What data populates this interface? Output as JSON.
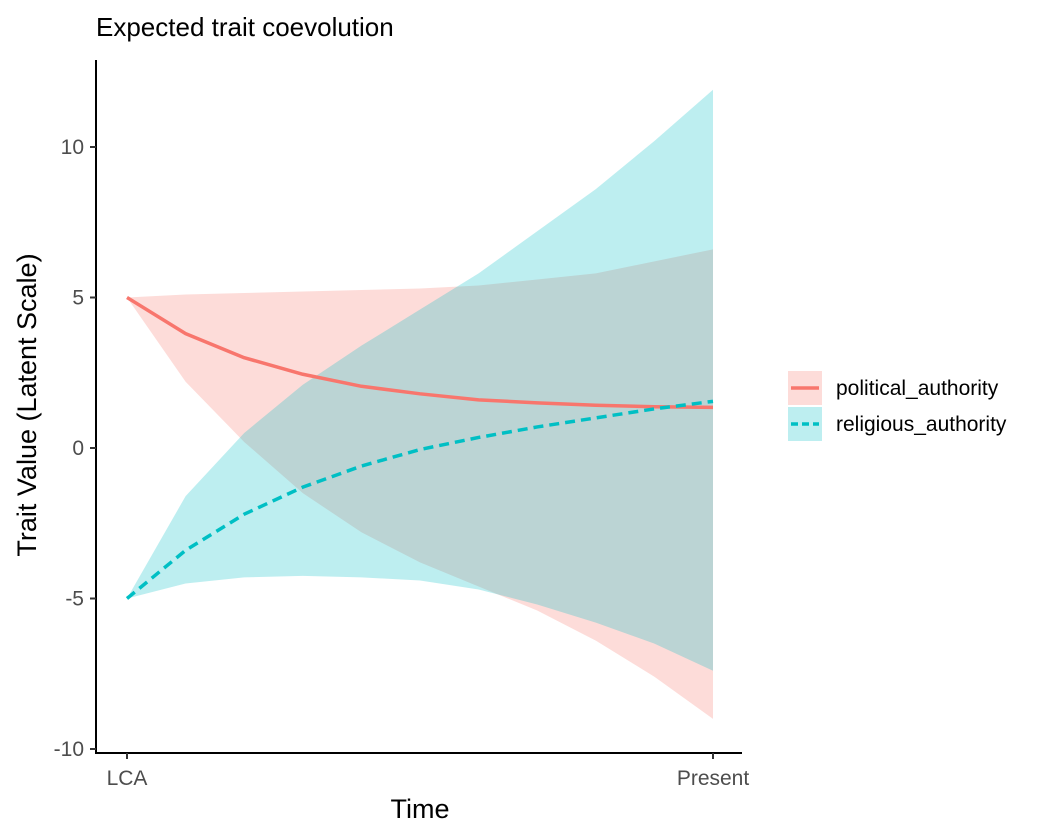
{
  "chart_data": {
    "type": "area",
    "title": "Expected trait coevolution",
    "xlabel": "Time",
    "ylabel": "Trait Value (Latent Scale)",
    "x_ticks": [
      "LCA",
      "Present"
    ],
    "x": [
      0,
      0.1,
      0.2,
      0.3,
      0.4,
      0.5,
      0.6,
      0.7,
      0.8,
      0.9,
      1.0
    ],
    "ylim": [
      -10,
      12
    ],
    "y_ticks": [
      -10,
      -5,
      0,
      5,
      10
    ],
    "legend_position": "right",
    "grid": false,
    "series": [
      {
        "name": "political_authority",
        "color": "#F8766D",
        "linestyle": "solid",
        "mean": [
          5.0,
          3.8,
          3.0,
          2.45,
          2.05,
          1.8,
          1.6,
          1.5,
          1.42,
          1.37,
          1.35
        ],
        "lower": [
          5.0,
          2.2,
          0.2,
          -1.5,
          -2.8,
          -3.8,
          -4.6,
          -5.4,
          -6.4,
          -7.6,
          -9.0
        ],
        "upper": [
          5.0,
          5.1,
          5.15,
          5.2,
          5.25,
          5.3,
          5.4,
          5.6,
          5.8,
          6.2,
          6.6
        ]
      },
      {
        "name": "religious_authority",
        "color": "#00BFC4",
        "linestyle": "dashed",
        "mean": [
          -5.0,
          -3.4,
          -2.2,
          -1.3,
          -0.6,
          -0.05,
          0.35,
          0.7,
          1.0,
          1.3,
          1.55
        ],
        "lower": [
          -5.0,
          -4.5,
          -4.3,
          -4.25,
          -4.3,
          -4.4,
          -4.7,
          -5.2,
          -5.8,
          -6.5,
          -7.4
        ],
        "upper": [
          -5.0,
          -1.6,
          0.5,
          2.1,
          3.4,
          4.6,
          5.8,
          7.2,
          8.6,
          10.2,
          11.9
        ]
      }
    ]
  }
}
